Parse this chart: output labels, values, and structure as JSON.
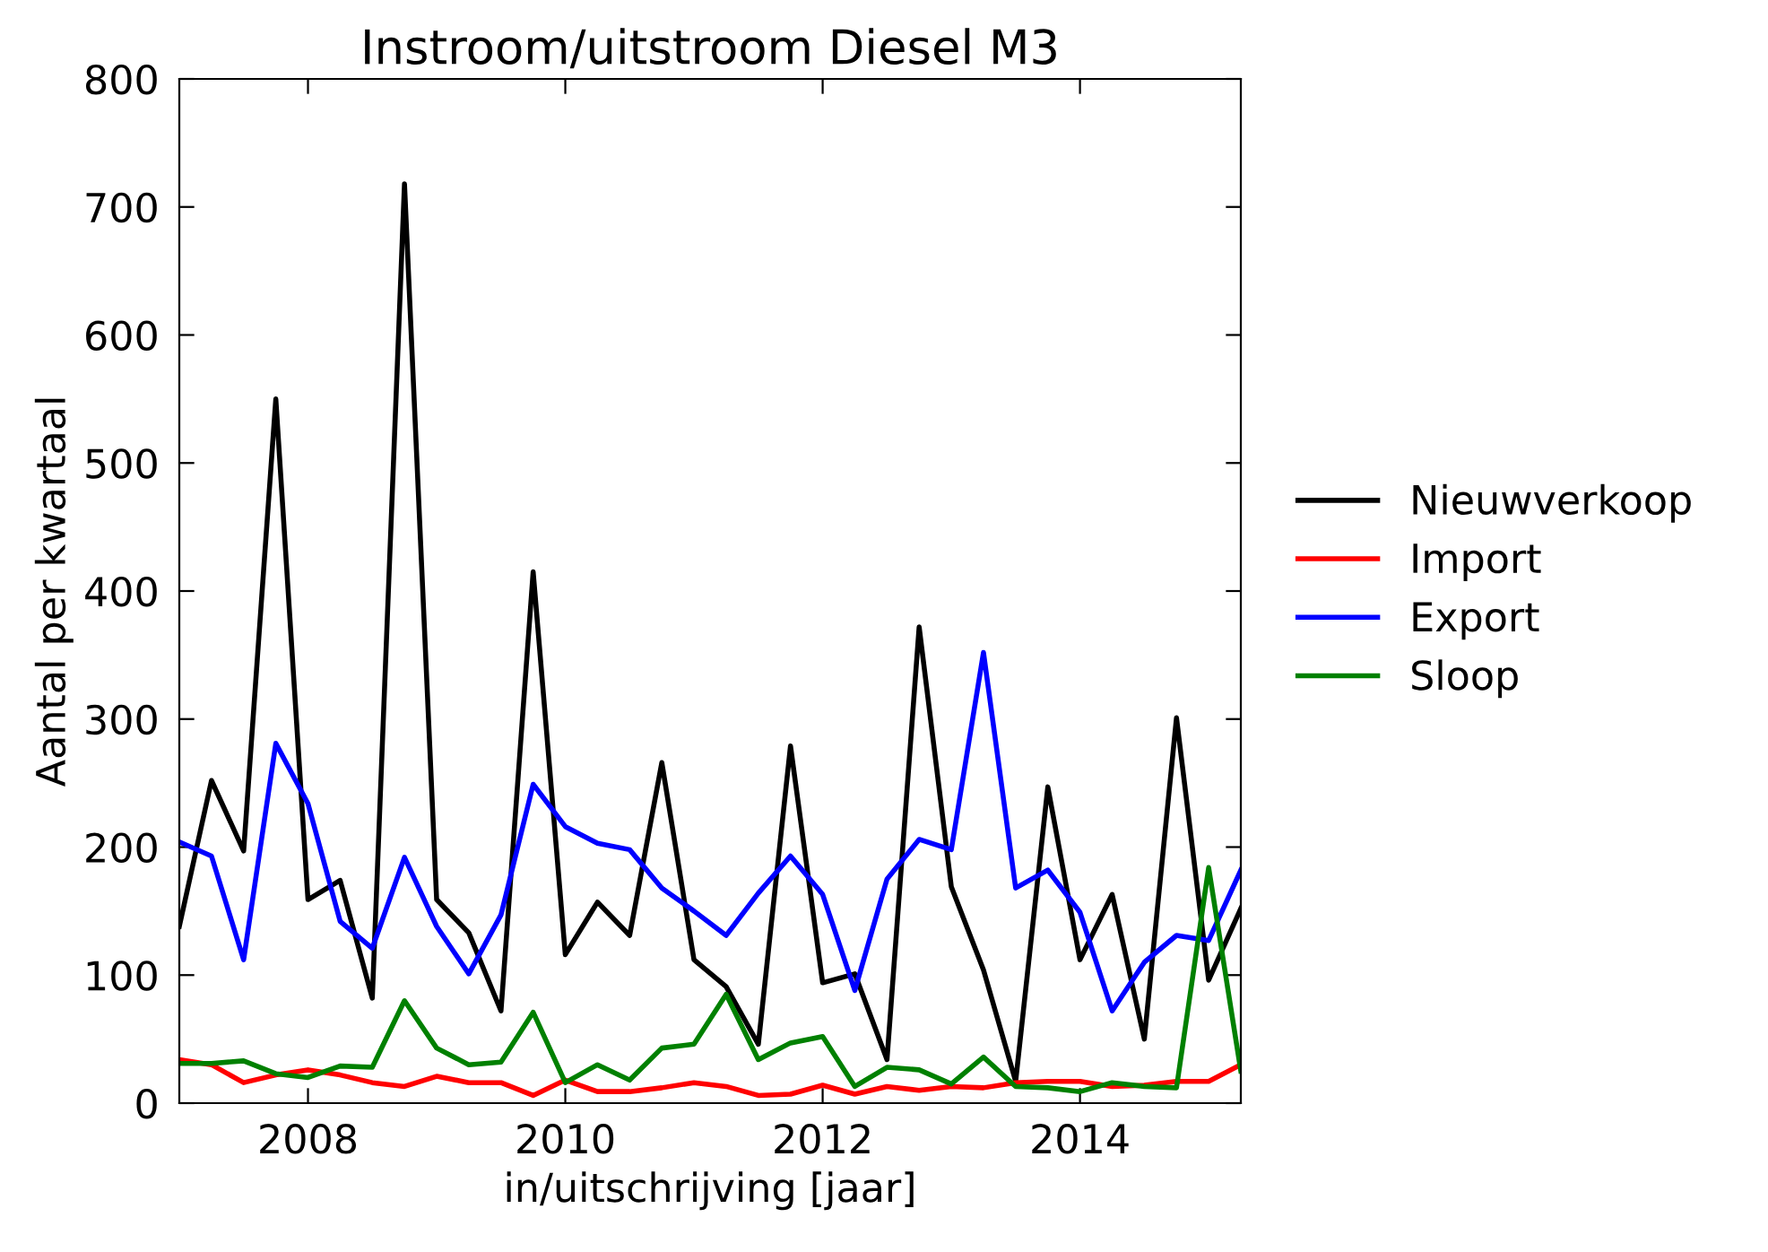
{
  "chart_data": {
    "type": "line",
    "title": "Instroom/uitstroom Diesel M3",
    "xlabel": "in/uitschrijving [jaar]",
    "ylabel": "Aantal per kwartaal",
    "x": [
      2007.0,
      2007.25,
      2007.5,
      2007.75,
      2008.0,
      2008.25,
      2008.5,
      2008.75,
      2009.0,
      2009.25,
      2009.5,
      2009.75,
      2010.0,
      2010.25,
      2010.5,
      2010.75,
      2011.0,
      2011.25,
      2011.5,
      2011.75,
      2012.0,
      2012.25,
      2012.5,
      2012.75,
      2013.0,
      2013.25,
      2013.5,
      2013.75,
      2014.0,
      2014.25,
      2014.5,
      2014.75,
      2015.0,
      2015.25
    ],
    "series": [
      {
        "name": "Nieuwverkoop",
        "color": "#000000",
        "values": [
          138,
          252,
          197,
          550,
          159,
          174,
          82,
          718,
          159,
          133,
          72,
          415,
          116,
          157,
          131,
          266,
          112,
          91,
          46,
          279,
          94,
          101,
          34,
          372,
          169,
          104,
          17,
          247,
          112,
          163,
          50,
          301,
          96,
          152
        ]
      },
      {
        "name": "Import",
        "color": "#ff0000",
        "values": [
          34,
          30,
          16,
          22,
          26,
          22,
          16,
          13,
          21,
          16,
          16,
          6,
          18,
          9,
          9,
          12,
          16,
          13,
          6,
          7,
          14,
          7,
          13,
          10,
          13,
          12,
          16,
          17,
          17,
          13,
          14,
          17,
          17,
          30
        ]
      },
      {
        "name": "Export",
        "color": "#0000ff",
        "values": [
          204,
          193,
          112,
          281,
          234,
          142,
          121,
          192,
          138,
          101,
          147,
          249,
          216,
          203,
          198,
          168,
          150,
          131,
          164,
          193,
          163,
          88,
          175,
          206,
          198,
          352,
          168,
          182,
          149,
          72,
          110,
          131,
          127,
          182
        ]
      },
      {
        "name": "Sloop",
        "color": "#008000",
        "values": [
          31,
          31,
          33,
          23,
          20,
          29,
          28,
          80,
          43,
          30,
          32,
          71,
          16,
          30,
          18,
          43,
          46,
          85,
          34,
          47,
          52,
          13,
          28,
          26,
          15,
          36,
          13,
          12,
          9,
          16,
          13,
          12,
          184,
          25
        ]
      }
    ],
    "xlim": [
      2007.0,
      2015.25
    ],
    "xticks": [
      2008,
      2010,
      2012,
      2014
    ],
    "ylim": [
      0,
      800
    ],
    "yticks": [
      0,
      100,
      200,
      300,
      400,
      500,
      600,
      700,
      800
    ],
    "legend": "right",
    "line_style": "solid",
    "marker": "none",
    "grid": false
  }
}
